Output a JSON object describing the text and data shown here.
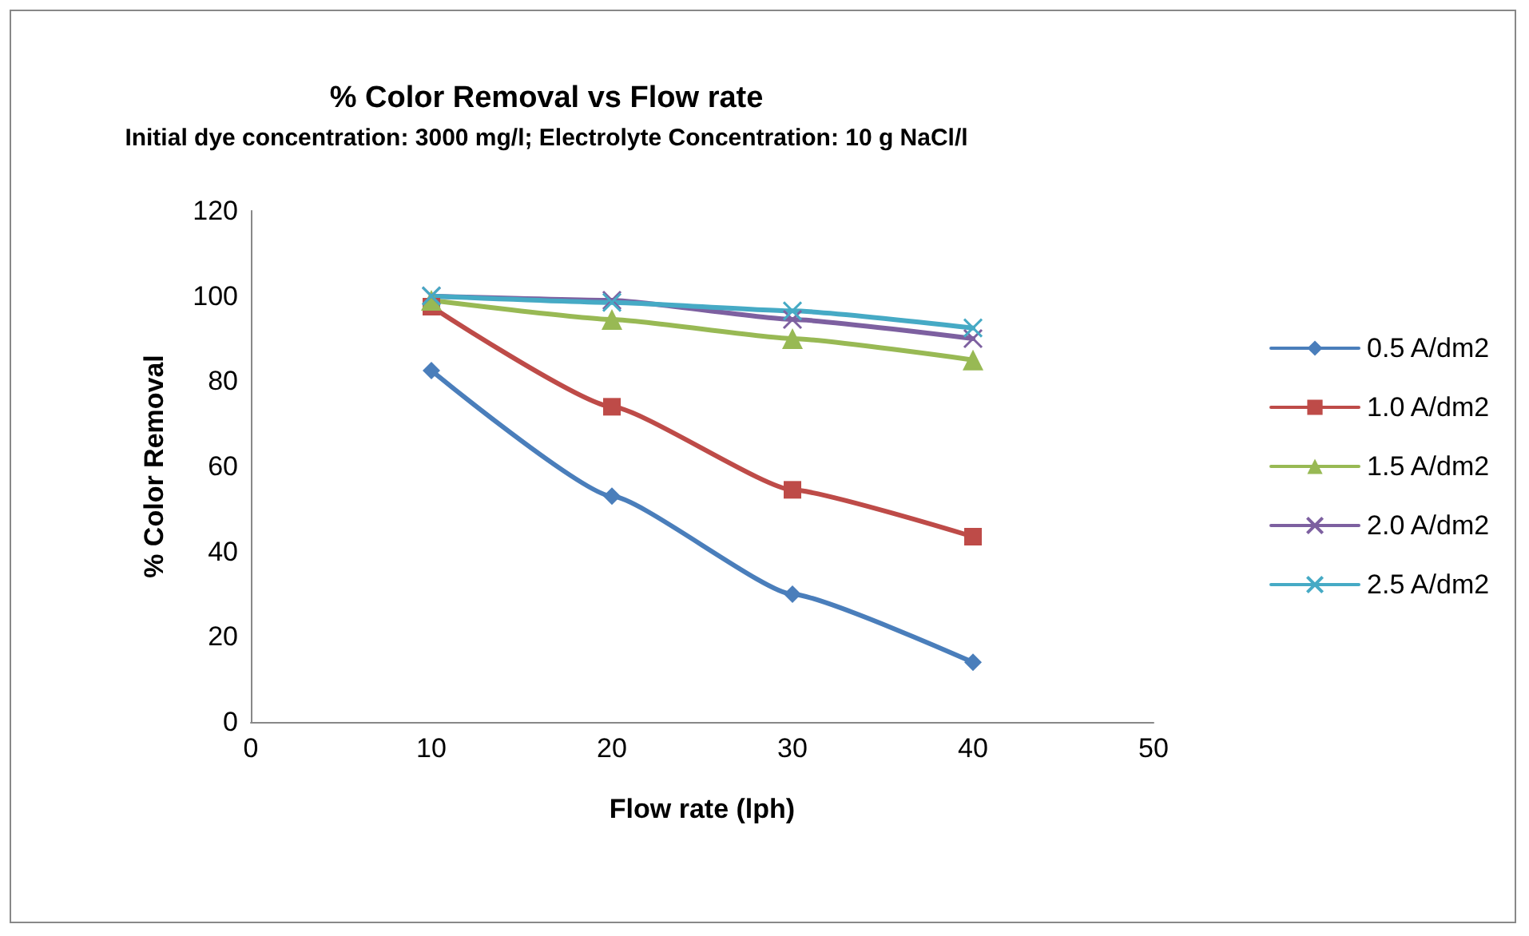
{
  "chart_data": {
    "type": "line",
    "title": "% Color Removal vs Flow rate",
    "subtitle": "Initial dye concentration: 3000 mg/l; Electrolyte Concentration: 10 g NaCl/l",
    "xlabel": "Flow rate (lph)",
    "ylabel": "% Color Removal",
    "x": [
      10,
      20,
      30,
      40
    ],
    "xlim": [
      0,
      50
    ],
    "xticks": [
      0,
      10,
      20,
      30,
      40,
      50
    ],
    "ylim": [
      0,
      120
    ],
    "yticks": [
      0,
      20,
      40,
      60,
      80,
      100,
      120
    ],
    "grid": false,
    "legend": "right",
    "series": [
      {
        "name": "0.5 A/dm2",
        "color": "#4a7ebb",
        "marker": "diamond",
        "values": [
          82.5,
          53,
          30,
          14
        ]
      },
      {
        "name": "1.0 A/dm2",
        "color": "#be4b48",
        "marker": "square",
        "values": [
          97.5,
          74,
          54.5,
          43.5
        ]
      },
      {
        "name": "1.5 A/dm2",
        "color": "#98b954",
        "marker": "triangle",
        "values": [
          99,
          94.5,
          90,
          85
        ]
      },
      {
        "name": "2.0 A/dm2",
        "color": "#7d60a0",
        "marker": "cross",
        "values": [
          100,
          99,
          94.5,
          90
        ]
      },
      {
        "name": "2.5 A/dm2",
        "color": "#46aac5",
        "marker": "cross",
        "values": [
          100,
          98.5,
          96.5,
          92.5
        ]
      }
    ]
  }
}
